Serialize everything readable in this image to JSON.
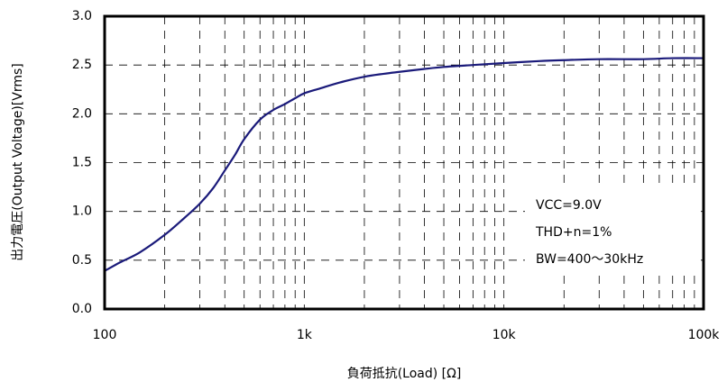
{
  "chart_data": {
    "type": "line",
    "xscale": "log",
    "xlim": [
      100,
      100000
    ],
    "ylim": [
      0.0,
      3.0
    ],
    "grid": true,
    "grid_style": "dashed",
    "xlabel": "負荷抵抗(Load) [Ω]",
    "ylabel": "出力電圧(Output Voltage)[Vrms]",
    "x_ticks": [
      {
        "value": 100,
        "label": "100"
      },
      {
        "value": 1000,
        "label": "1k"
      },
      {
        "value": 10000,
        "label": "10k"
      },
      {
        "value": 100000,
        "label": "100k"
      }
    ],
    "y_ticks": [
      {
        "value": 0.0,
        "label": "0.0"
      },
      {
        "value": 0.5,
        "label": "0.5"
      },
      {
        "value": 1.0,
        "label": "1.0"
      },
      {
        "value": 1.5,
        "label": "1.5"
      },
      {
        "value": 2.0,
        "label": "2.0"
      },
      {
        "value": 2.5,
        "label": "2.5"
      },
      {
        "value": 3.0,
        "label": "3.0"
      }
    ],
    "annotations": [
      "VCC=9.0V",
      "THD+n=1%",
      "BW=400～30kHz"
    ],
    "series": [
      {
        "color": "#1a1a7a",
        "x": [
          100,
          120,
          150,
          200,
          250,
          300,
          350,
          400,
          450,
          500,
          600,
          700,
          800,
          900,
          1000,
          1200,
          1500,
          2000,
          2500,
          3000,
          4000,
          5000,
          7000,
          10000,
          15000,
          20000,
          30000,
          50000,
          70000,
          100000
        ],
        "y": [
          0.39,
          0.48,
          0.58,
          0.76,
          0.93,
          1.08,
          1.24,
          1.42,
          1.58,
          1.74,
          1.94,
          2.04,
          2.1,
          2.16,
          2.21,
          2.26,
          2.32,
          2.38,
          2.41,
          2.43,
          2.46,
          2.48,
          2.5,
          2.52,
          2.54,
          2.55,
          2.56,
          2.56,
          2.57,
          2.57
        ]
      }
    ]
  }
}
